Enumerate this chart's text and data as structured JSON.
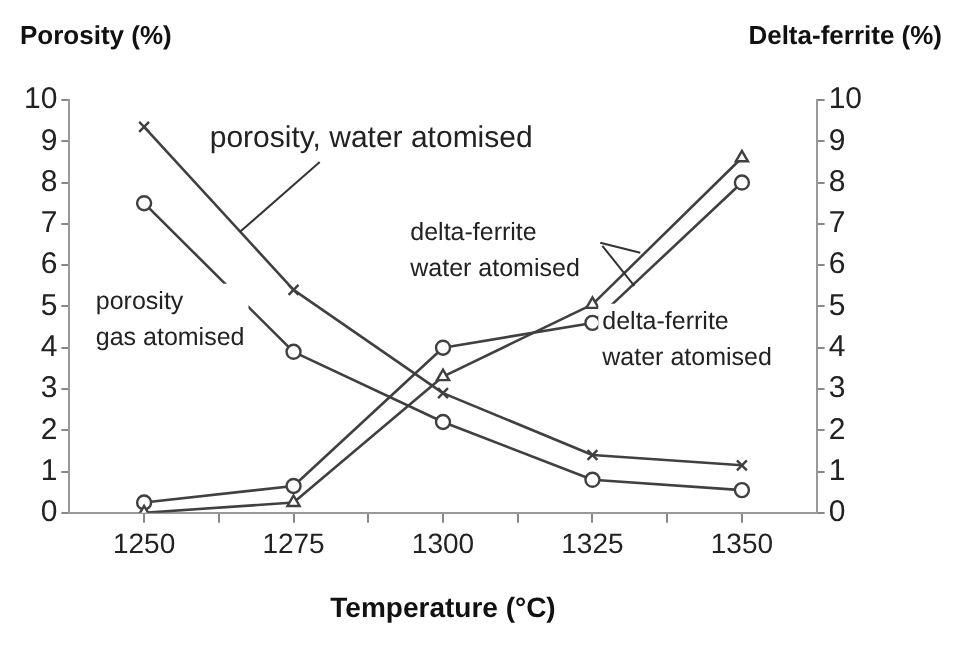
{
  "chart_data": {
    "type": "line",
    "xlabel": "Temperature (°C)",
    "ylabel": "Porosity (%)",
    "y2label": "Delta-ferrite (%)",
    "x": [
      1250,
      1275,
      1300,
      1325,
      1350
    ],
    "xlim": [
      1237.5,
      1362.5
    ],
    "xticks": [
      1250,
      {
        "value": 1262.5,
        "label": null
      },
      1275,
      {
        "value": 1287.5,
        "label": null
      },
      1300,
      {
        "value": 1312.5,
        "label": null
      },
      1325,
      {
        "value": 1337.5,
        "label": null
      },
      1350
    ],
    "ylim": [
      0,
      10
    ],
    "yticks": [
      0,
      1,
      2,
      3,
      4,
      5,
      6,
      7,
      8,
      9,
      10
    ],
    "y2lim": [
      0,
      10
    ],
    "y2ticks": [
      0,
      1,
      2,
      3,
      4,
      5,
      6,
      7,
      8,
      9,
      10
    ],
    "series": [
      {
        "color": "#404040",
        "marker": "cross",
        "values": [
          9.35,
          5.4,
          2.9,
          1.4,
          1.15
        ]
      },
      {
        "color": "#404040",
        "marker": "circle",
        "values": [
          7.5,
          3.9,
          2.2,
          0.8,
          0.55
        ]
      },
      {
        "color": "#404040",
        "marker": "triangle",
        "axis": "y2",
        "values": [
          0,
          0.25,
          3.3,
          5.05,
          8.6
        ]
      },
      {
        "color": "#404040",
        "marker": "circle",
        "axis": "y2",
        "values": [
          0.25,
          0.65,
          4.0,
          4.6,
          8.0
        ]
      }
    ],
    "annotations": [
      {
        "text": "porosity, water atomised",
        "x": 1266,
        "y": 6.8
      },
      {
        "text": "porosity\ngas atomised",
        "x": 1264,
        "y": 5.5
      },
      {
        "text": "delta-ferrite\nwater atomised",
        "x": 1333,
        "y": 6.3
      },
      {
        "text": "delta-ferrite\nwater atomised",
        "x": 1332,
        "y": 5.5
      }
    ],
    "grid": false,
    "legend": false
  }
}
